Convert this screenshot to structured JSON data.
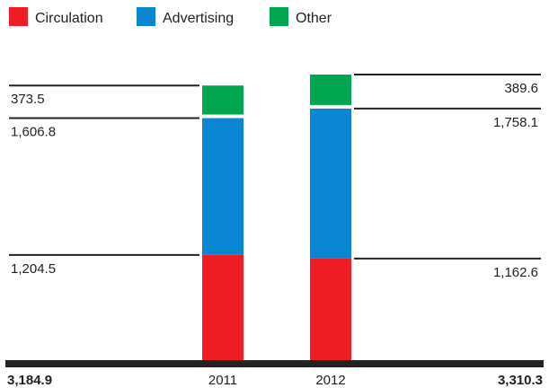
{
  "chart_data": {
    "type": "bar",
    "stacked": true,
    "categories": [
      "2011",
      "2012"
    ],
    "series": [
      {
        "name": "Circulation",
        "color": "#ee1c25",
        "values": [
          1204.5,
          1162.6
        ]
      },
      {
        "name": "Advertising",
        "color": "#0a85d1",
        "values": [
          1606.8,
          1758.1
        ]
      },
      {
        "name": "Other",
        "color": "#00a650",
        "values": [
          373.5,
          389.6
        ]
      }
    ],
    "totals": [
      "3,184.9",
      "3,310.3"
    ],
    "value_labels": [
      [
        "1,204.5",
        "1,606.8",
        "373.5"
      ],
      [
        "1,162.6",
        "1,758.1",
        "389.6"
      ]
    ],
    "ylim": [
      0,
      3310.3
    ],
    "grid": false,
    "legend_position": "top-left",
    "colors": {
      "axis": "#222222",
      "leader": "#222222",
      "text": "#222222"
    }
  }
}
